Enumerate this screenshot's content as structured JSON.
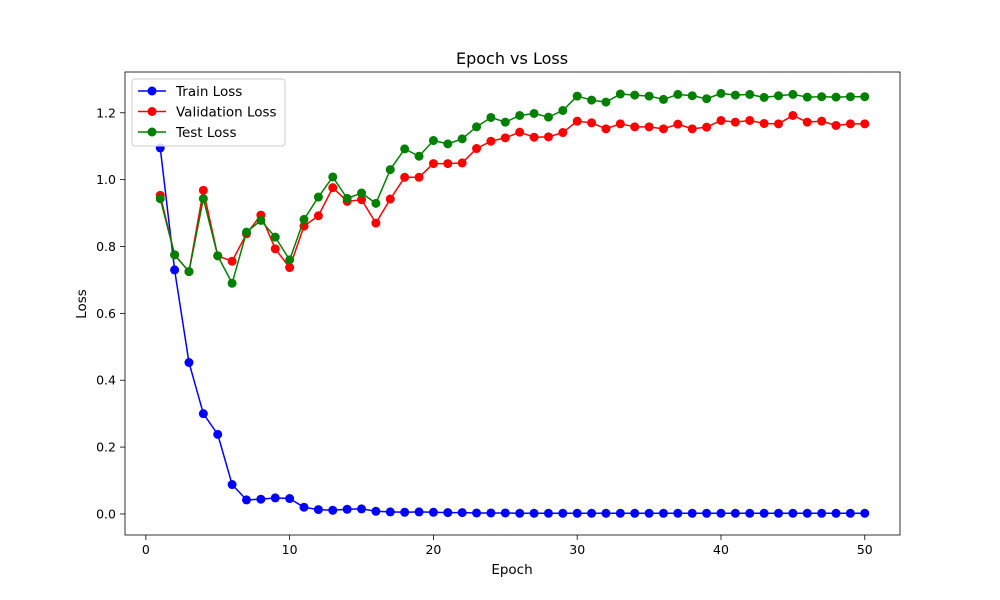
{
  "chart_data": {
    "type": "line",
    "title": "Epoch vs Loss",
    "xlabel": "Epoch",
    "ylabel": "Loss",
    "xlim": [
      -1.45,
      52.45
    ],
    "ylim": [
      -0.063,
      1.322
    ],
    "xticks": [
      0,
      10,
      20,
      30,
      40,
      50
    ],
    "yticks": [
      0.0,
      0.2,
      0.4,
      0.6,
      0.8,
      1.0,
      1.2
    ],
    "grid": false,
    "legend": "upper-left",
    "x": [
      1,
      2,
      3,
      4,
      5,
      6,
      7,
      8,
      9,
      10,
      11,
      12,
      13,
      14,
      15,
      16,
      17,
      18,
      19,
      20,
      21,
      22,
      23,
      24,
      25,
      26,
      27,
      28,
      29,
      30,
      31,
      32,
      33,
      34,
      35,
      36,
      37,
      38,
      39,
      40,
      41,
      42,
      43,
      44,
      45,
      46,
      47,
      48,
      49,
      50
    ],
    "series": [
      {
        "name": "Train Loss",
        "color": "#0000ff",
        "values": [
          1.095,
          0.73,
          0.453,
          0.3,
          0.238,
          0.088,
          0.042,
          0.044,
          0.048,
          0.046,
          0.02,
          0.013,
          0.011,
          0.014,
          0.015,
          0.008,
          0.006,
          0.005,
          0.006,
          0.005,
          0.004,
          0.004,
          0.003,
          0.003,
          0.003,
          0.002,
          0.002,
          0.002,
          0.002,
          0.002,
          0.002,
          0.002,
          0.002,
          0.002,
          0.002,
          0.002,
          0.002,
          0.002,
          0.002,
          0.002,
          0.002,
          0.002,
          0.002,
          0.002,
          0.002,
          0.002,
          0.002,
          0.002,
          0.002,
          0.002
        ]
      },
      {
        "name": "Validation Loss",
        "color": "#ff0000",
        "values": [
          0.953,
          0.775,
          0.725,
          0.968,
          0.772,
          0.756,
          0.838,
          0.894,
          0.793,
          0.737,
          0.861,
          0.892,
          0.976,
          0.935,
          0.94,
          0.87,
          0.942,
          1.007,
          1.007,
          1.048,
          1.048,
          1.05,
          1.093,
          1.115,
          1.125,
          1.142,
          1.127,
          1.128,
          1.141,
          1.175,
          1.17,
          1.152,
          1.167,
          1.158,
          1.158,
          1.152,
          1.166,
          1.152,
          1.157,
          1.177,
          1.172,
          1.177,
          1.168,
          1.167,
          1.192,
          1.172,
          1.175,
          1.162,
          1.167,
          1.167
        ]
      },
      {
        "name": "Test Loss",
        "color": "#008000",
        "values": [
          0.943,
          0.775,
          0.725,
          0.943,
          0.772,
          0.69,
          0.843,
          0.878,
          0.828,
          0.76,
          0.881,
          0.948,
          1.008,
          0.944,
          0.96,
          0.929,
          1.03,
          1.092,
          1.07,
          1.117,
          1.107,
          1.122,
          1.158,
          1.186,
          1.172,
          1.192,
          1.198,
          1.187,
          1.207,
          1.25,
          1.238,
          1.232,
          1.256,
          1.253,
          1.25,
          1.24,
          1.255,
          1.251,
          1.242,
          1.258,
          1.253,
          1.255,
          1.246,
          1.251,
          1.255,
          1.247,
          1.248,
          1.247,
          1.248,
          1.248
        ]
      }
    ]
  }
}
